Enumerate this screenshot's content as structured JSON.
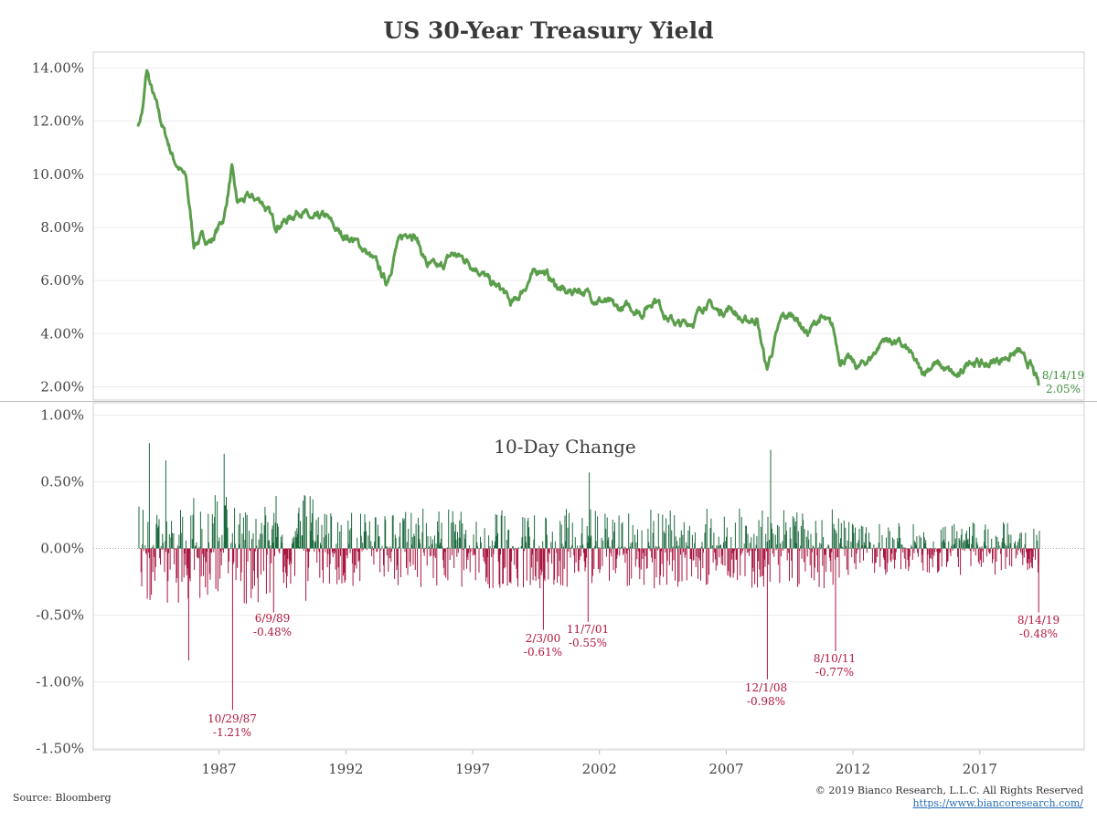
{
  "chart_data": [
    {
      "type": "line",
      "title": "US 30-Year Treasury Yield",
      "ylim": [
        1.5,
        14.5
      ],
      "yticks": [
        "2.00%",
        "4.00%",
        "6.00%",
        "8.00%",
        "10.00%",
        "12.00%",
        "14.00%"
      ],
      "color": "#5a9e4b",
      "x": [
        1984.1,
        1984.3,
        1984.45,
        1984.6,
        1985.0,
        1985.5,
        1986.0,
        1986.3,
        1986.6,
        1987.0,
        1987.5,
        1987.8,
        1988.0,
        1988.5,
        1989.0,
        1989.5,
        1990.0,
        1990.5,
        1991.0,
        1991.5,
        1992.0,
        1992.5,
        1993.0,
        1993.5,
        1993.9,
        1994.3,
        1994.8,
        1995.0,
        1995.5,
        1996.0,
        1996.5,
        1997.0,
        1997.5,
        1998.0,
        1998.5,
        1998.8,
        1999.0,
        1999.5,
        2000.0,
        2000.5,
        2001.0,
        2001.5,
        2002.0,
        2002.5,
        2003.0,
        2003.5,
        2004.0,
        2004.5,
        2005.0,
        2005.5,
        2006.0,
        2006.5,
        2007.0,
        2007.5,
        2008.0,
        2008.5,
        2008.9,
        2009.0,
        2009.5,
        2010.0,
        2010.5,
        2011.0,
        2011.5,
        2011.8,
        2012.0,
        2012.5,
        2013.0,
        2013.5,
        2014.0,
        2014.5,
        2015.0,
        2015.5,
        2016.0,
        2016.5,
        2016.9,
        2017.0,
        2017.5,
        2018.0,
        2018.5,
        2018.9,
        2019.0,
        2019.3,
        2019.62
      ],
      "y": [
        11.8,
        12.5,
        13.9,
        13.3,
        12.0,
        10.6,
        9.8,
        7.4,
        7.6,
        7.5,
        8.4,
        10.2,
        8.9,
        9.1,
        9.0,
        8.1,
        8.3,
        8.7,
        8.2,
        8.4,
        7.8,
        7.6,
        7.2,
        6.6,
        5.9,
        7.3,
        7.9,
        7.8,
        6.6,
        6.4,
        7.0,
        6.8,
        6.5,
        5.9,
        5.6,
        5.1,
        5.2,
        6.0,
        6.5,
        5.9,
        5.5,
        5.7,
        5.4,
        5.2,
        4.9,
        5.0,
        4.8,
        5.4,
        4.6,
        4.3,
        4.5,
        5.2,
        4.8,
        5.0,
        4.4,
        4.6,
        2.6,
        3.0,
        4.6,
        4.7,
        4.0,
        4.6,
        4.2,
        3.0,
        3.1,
        2.7,
        3.1,
        3.8,
        3.7,
        3.3,
        2.5,
        2.9,
        2.6,
        2.3,
        3.1,
        3.0,
        2.8,
        3.0,
        3.2,
        3.3,
        3.0,
        2.8,
        2.05
      ],
      "annotation": {
        "label": "8/14/19",
        "value": "2.05%"
      }
    },
    {
      "type": "bar",
      "title": "10-Day Change",
      "ylim": [
        -1.5,
        1.0
      ],
      "yticks": [
        "-1.50%",
        "-1.00%",
        "-0.50%",
        "0.00%",
        "0.50%",
        "1.00%"
      ],
      "xticks": [
        "1987",
        "1992",
        "1997",
        "2002",
        "2007",
        "2012",
        "2017"
      ],
      "colors": {
        "positive": "#1d6a3e",
        "negative": "#a8163f"
      },
      "extremes": [
        {
          "x": 1984.55,
          "y": 0.79
        },
        {
          "x": 1985.2,
          "y": 0.66
        },
        {
          "x": 1986.1,
          "y": -0.84
        },
        {
          "x": 1987.5,
          "y": 0.71
        },
        {
          "x": 1987.83,
          "y": -1.21
        },
        {
          "x": 1989.45,
          "y": -0.48
        },
        {
          "x": 2000.09,
          "y": -0.61
        },
        {
          "x": 2001.85,
          "y": -0.55
        },
        {
          "x": 2001.9,
          "y": 0.57
        },
        {
          "x": 2008.92,
          "y": -0.98
        },
        {
          "x": 2009.05,
          "y": 0.74
        },
        {
          "x": 2011.61,
          "y": -0.77
        },
        {
          "x": 2019.62,
          "y": -0.48
        }
      ],
      "annotations": [
        {
          "label": "10/29/87",
          "value": "-1.21%"
        },
        {
          "label": "6/9/89",
          "value": "-0.48%"
        },
        {
          "label": "2/3/00",
          "value": "-0.61%"
        },
        {
          "label": "11/7/01",
          "value": "-0.55%"
        },
        {
          "label": "12/1/08",
          "value": "-0.98%"
        },
        {
          "label": "8/10/11",
          "value": "-0.77%"
        },
        {
          "label": "8/14/19",
          "value": "-0.48%"
        }
      ]
    }
  ],
  "footer": {
    "source": "Source: Bloomberg",
    "copyright": "© 2019 Bianco Research, L.L.C. All Rights Reserved",
    "url": "https://www.biancoresearch.com/"
  }
}
